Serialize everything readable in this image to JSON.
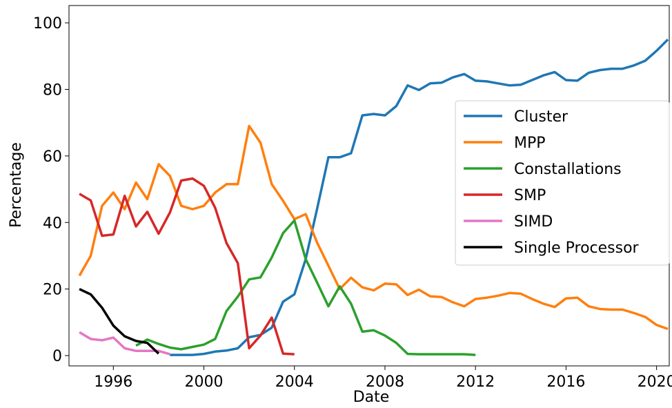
{
  "chart_data": {
    "type": "line",
    "x_label": "Date",
    "y_label": "Percentage",
    "x": [
      1994.5,
      1995,
      1995.5,
      1996,
      1996.5,
      1997,
      1997.5,
      1998,
      1998.5,
      1999,
      1999.5,
      2000,
      2000.5,
      2001,
      2001.5,
      2002,
      2002.5,
      2003,
      2003.5,
      2004,
      2004.5,
      2005,
      2005.5,
      2006,
      2006.5,
      2007,
      2007.5,
      2008,
      2008.5,
      2009,
      2009.5,
      2010,
      2010.5,
      2011,
      2011.5,
      2012,
      2012.5,
      2013,
      2013.5,
      2014,
      2014.5,
      2015,
      2015.5,
      2016,
      2016.5,
      2017,
      2017.5,
      2018,
      2018.5,
      2019,
      2019.5,
      2020,
      2020.5
    ],
    "xlim": [
      1994.04,
      2020.56
    ],
    "xticks": [
      1996,
      2000,
      2004,
      2008,
      2012,
      2016,
      2020
    ],
    "ylim": [
      -3.1,
      105.2
    ],
    "yticks": [
      0,
      20,
      40,
      60,
      80,
      100
    ],
    "legend": "right",
    "series": [
      {
        "name": "Cluster",
        "color": "#1f77b4",
        "values": [
          null,
          null,
          null,
          null,
          null,
          null,
          null,
          null,
          0.2,
          0.2,
          0.2,
          0.5,
          1.2,
          1.5,
          2.2,
          5.5,
          6.2,
          8.4,
          16.2,
          18.4,
          29,
          44,
          59.6,
          59.6,
          60.8,
          72.2,
          72.6,
          72.2,
          75,
          81.2,
          79.8,
          81.8,
          82,
          83.6,
          84.6,
          82.6,
          82.4,
          81.8,
          81.2,
          81.4,
          82.8,
          84.2,
          85.2,
          82.8,
          82.6,
          85,
          85.8,
          86.2,
          86.2,
          87.2,
          88.6,
          91.6,
          95
        ]
      },
      {
        "name": "MPP",
        "color": "#ff7f0e",
        "values": [
          24,
          30,
          45,
          49,
          44,
          52,
          47,
          57.5,
          54,
          45,
          44,
          45,
          49,
          51.5,
          51.5,
          69,
          64,
          51.5,
          46.5,
          41,
          42.5,
          34,
          27,
          20,
          23.4,
          20.5,
          19.6,
          21.6,
          21.4,
          18.2,
          19.8,
          17.8,
          17.6,
          16,
          14.8,
          17,
          17.4,
          18,
          18.8,
          18.6,
          17,
          15.6,
          14.6,
          17.2,
          17.4,
          14.8,
          14,
          13.8,
          13.8,
          12.8,
          11.6,
          9.2,
          8
        ]
      },
      {
        "name": "Constallations",
        "color": "#2ca02c",
        "values": [
          null,
          null,
          null,
          null,
          null,
          3,
          4.8,
          3.5,
          2.4,
          1.9,
          2.6,
          3.3,
          5,
          13.4,
          17.7,
          22.9,
          23.5,
          29.5,
          36.8,
          40.6,
          29,
          22,
          14.8,
          20.8,
          15.6,
          7.2,
          7.6,
          6,
          3.8,
          0.5,
          0.4,
          0.4,
          0.4,
          0.4,
          0.4,
          0.2,
          null,
          null,
          null,
          null,
          null,
          null,
          null,
          null,
          null,
          null,
          null,
          null,
          null,
          null,
          null,
          null,
          null
        ]
      },
      {
        "name": "SMP",
        "color": "#d62728",
        "values": [
          48.6,
          46.6,
          36,
          36.4,
          48,
          38.8,
          43.2,
          36.6,
          43,
          52.6,
          53.2,
          51,
          44.4,
          33.8,
          27.8,
          2.2,
          6,
          11.4,
          0.6,
          0.4,
          null,
          null,
          null,
          null,
          null,
          null,
          null,
          null,
          null,
          null,
          null,
          null,
          null,
          null,
          null,
          null,
          null,
          null,
          null,
          null,
          null,
          null,
          null,
          null,
          null,
          null,
          null,
          null,
          null,
          null,
          null,
          null,
          null
        ]
      },
      {
        "name": "SIMD",
        "color": "#e377c2",
        "values": [
          7,
          5,
          4.6,
          5.4,
          2.2,
          1.4,
          1.4,
          1.4,
          0.4,
          null,
          null,
          null,
          null,
          null,
          null,
          null,
          null,
          null,
          null,
          null,
          null,
          null,
          null,
          null,
          null,
          null,
          null,
          null,
          null,
          null,
          null,
          null,
          null,
          null,
          null,
          null,
          null,
          null,
          null,
          null,
          null,
          null,
          null,
          null,
          null,
          null,
          null,
          null,
          null,
          null,
          null,
          null,
          null
        ]
      },
      {
        "name": "Single Processor",
        "color": "#000000",
        "values": [
          20,
          18.4,
          14.4,
          9,
          5.8,
          4.4,
          3.8,
          0.6,
          null,
          null,
          null,
          null,
          null,
          null,
          null,
          null,
          null,
          null,
          null,
          null,
          null,
          null,
          null,
          null,
          null,
          null,
          null,
          null,
          null,
          null,
          null,
          null,
          null,
          null,
          null,
          null,
          null,
          null,
          null,
          null,
          null,
          null,
          null,
          null,
          null,
          null,
          null,
          null,
          null,
          null,
          null,
          null,
          null
        ]
      }
    ]
  }
}
